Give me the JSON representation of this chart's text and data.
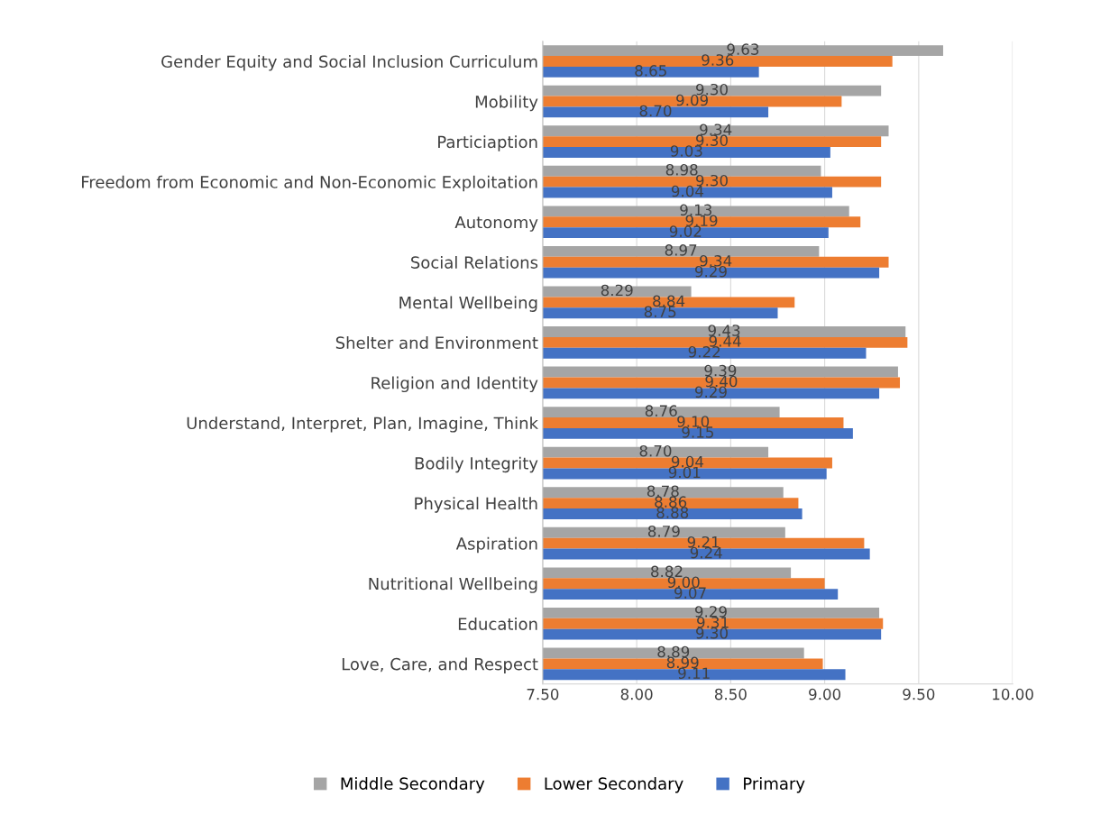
{
  "chart_data": {
    "type": "bar",
    "orientation": "horizontal",
    "categories": [
      "Gender Equity and Social Inclusion Curriculum",
      "Mobility",
      "Particiaption",
      "Freedom from Economic and Non-Economic Exploitation",
      "Autonomy",
      "Social Relations",
      "Mental Wellbeing",
      "Shelter and Environment",
      "Religion and Identity",
      "Understand, Interpret, Plan, Imagine, Think",
      "Bodily Integrity",
      "Physical Health",
      "Aspiration",
      "Nutritional Wellbeing",
      "Education",
      "Love, Care, and Respect"
    ],
    "series": [
      {
        "name": "Middle Secondary",
        "color": "#a5a5a5",
        "values": [
          9.63,
          9.3,
          9.34,
          8.98,
          9.13,
          8.97,
          8.29,
          9.43,
          9.39,
          8.76,
          8.7,
          8.78,
          8.79,
          8.82,
          9.29,
          8.89
        ],
        "value_labels": [
          "9.63",
          "9.30",
          "9.34",
          "8.98",
          "9.13",
          "8.97",
          "8.29",
          "9.43",
          "9.39",
          "8.76",
          "8.70",
          "8.78",
          "8.79",
          "8.82",
          "9.29",
          "8.89"
        ]
      },
      {
        "name": "Lower Secondary",
        "color": "#ed7d31",
        "values": [
          9.36,
          9.09,
          9.3,
          9.3,
          9.19,
          9.34,
          8.84,
          9.44,
          9.4,
          9.1,
          9.04,
          8.86,
          9.21,
          9.0,
          9.31,
          8.99
        ],
        "value_labels": [
          "9.36",
          "9.09",
          "9.30",
          "9.30",
          "9.19",
          "9.34",
          "8.84",
          "9.44",
          "9.40",
          "9.10",
          "9.04",
          "8.86",
          "9.21",
          "9.00",
          "9.31",
          "8.99"
        ]
      },
      {
        "name": "Primary",
        "color": "#4472c4",
        "values": [
          8.65,
          8.7,
          9.03,
          9.04,
          9.02,
          9.29,
          8.75,
          9.22,
          9.29,
          9.15,
          9.01,
          8.88,
          9.24,
          9.07,
          9.3,
          9.11
        ],
        "value_labels": [
          "8.65",
          "8.70",
          "9.03",
          "9.04",
          "9.02",
          "9.29",
          "8.75",
          "9.22",
          "9.29",
          "9.15",
          "9.01",
          "8.88",
          "9.24",
          "9.07",
          "9.30",
          "9.11"
        ]
      }
    ],
    "xlim": [
      7.5,
      10.0
    ],
    "xticks": [
      {
        "value": 7.5,
        "label": "7.50"
      },
      {
        "value": 8.0,
        "label": "8.00"
      },
      {
        "value": 8.5,
        "label": "8.50"
      },
      {
        "value": 9.0,
        "label": "9.00"
      },
      {
        "value": 9.5,
        "label": "9.50"
      },
      {
        "value": 10.0,
        "label": "10.00"
      }
    ],
    "grid": "x",
    "legend": "bottom"
  }
}
